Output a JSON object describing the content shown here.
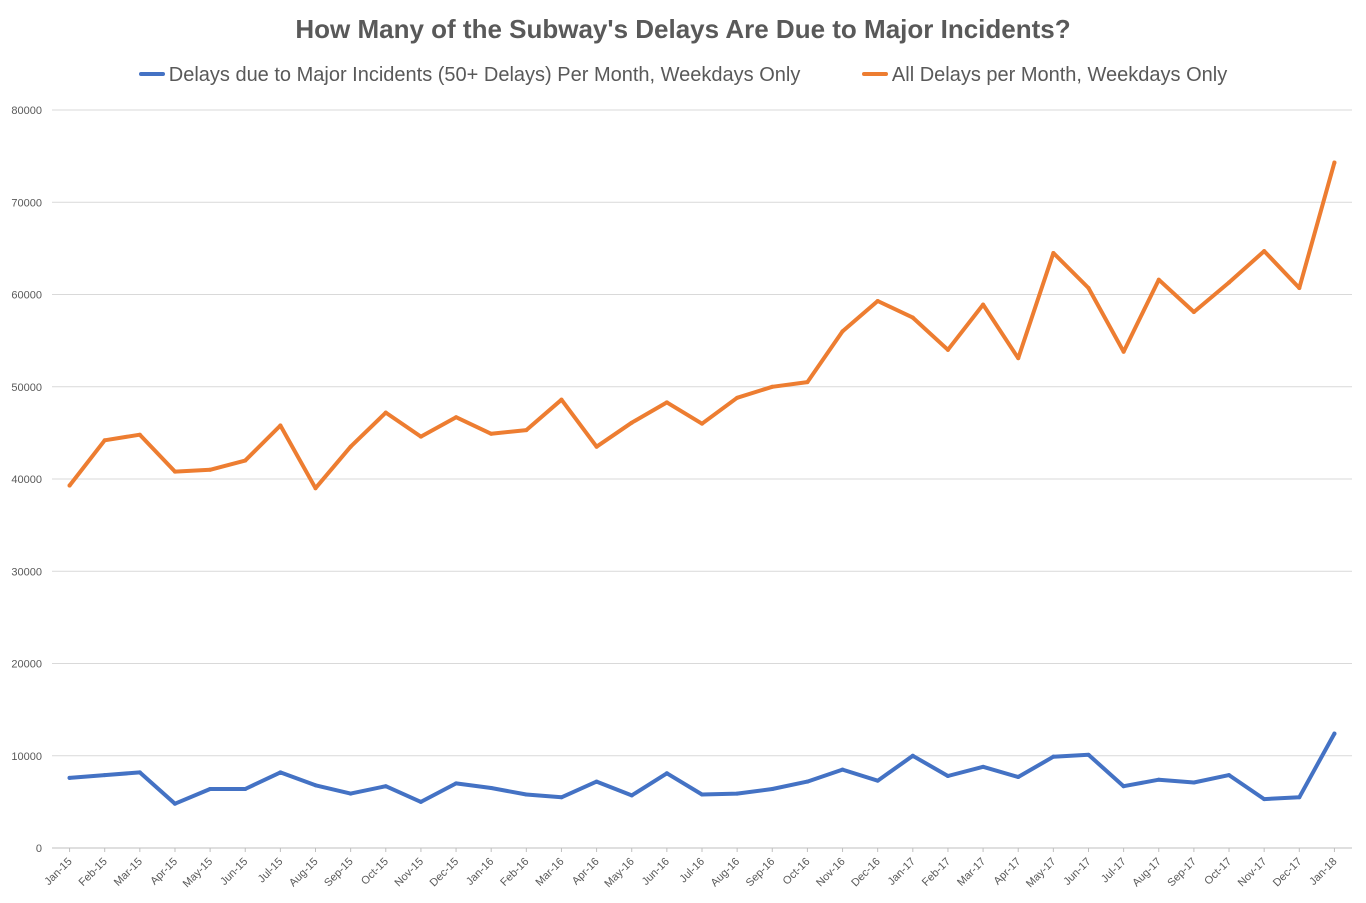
{
  "chart_data": {
    "type": "line",
    "title": "How Many of the Subway's Delays Are Due to Major Incidents?",
    "xlabel": "",
    "ylabel": "",
    "ylim": [
      0,
      80000
    ],
    "yticks": [
      "0",
      "10000",
      "20000",
      "30000",
      "40000",
      "50000",
      "60000",
      "70000",
      "80000"
    ],
    "grid": true,
    "legend_position": "top",
    "categories": [
      "Jan-15",
      "Feb-15",
      "Mar-15",
      "Apr-15",
      "May-15",
      "Jun-15",
      "Jul-15",
      "Aug-15",
      "Sep-15",
      "Oct-15",
      "Nov-15",
      "Dec-15",
      "Jan-16",
      "Feb-16",
      "Mar-16",
      "Apr-16",
      "May-16",
      "Jun-16",
      "Jul-16",
      "Aug-16",
      "Sep-16",
      "Oct-16",
      "Nov-16",
      "Dec-16",
      "Jan-17",
      "Feb-17",
      "Mar-17",
      "Apr-17",
      "May-17",
      "Jun-17",
      "Jul-17",
      "Aug-17",
      "Sep-17",
      "Oct-17",
      "Nov-17",
      "Dec-17",
      "Jan-18"
    ],
    "series": [
      {
        "name": "Delays due to Major Incidents (50+ Delays) Per Month, Weekdays Only",
        "color": "#4472C4",
        "values": [
          7600,
          7900,
          8200,
          4800,
          6400,
          6400,
          8200,
          6800,
          5900,
          6700,
          5000,
          7000,
          6500,
          5800,
          5500,
          7200,
          5700,
          8100,
          5800,
          5900,
          6400,
          7200,
          8500,
          7300,
          10000,
          7800,
          8800,
          7700,
          9900,
          10100,
          6700,
          7400,
          7100,
          7900,
          5300,
          5500,
          12400
        ]
      },
      {
        "name": "All Delays per Month, Weekdays Only",
        "color": "#ED7D31",
        "values": [
          39300,
          44200,
          44800,
          40800,
          41000,
          42000,
          45800,
          39000,
          43500,
          47200,
          44600,
          46700,
          44900,
          45300,
          48600,
          43500,
          46100,
          48300,
          46000,
          48800,
          50000,
          50500,
          56000,
          59300,
          57500,
          54000,
          58900,
          53100,
          64500,
          60700,
          53800,
          61600,
          58100,
          61300,
          64700,
          60700,
          74300
        ]
      }
    ]
  }
}
